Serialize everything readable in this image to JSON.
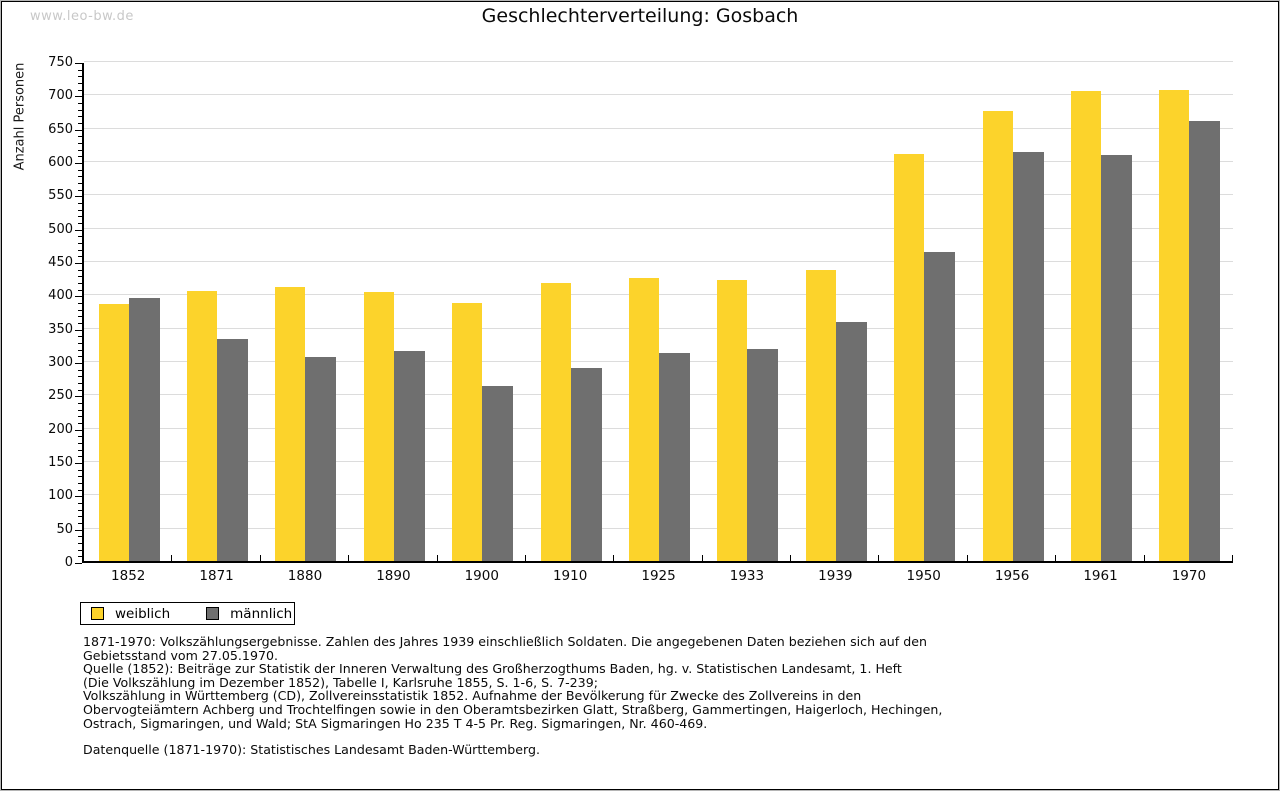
{
  "watermark": "www.leo-bw.de",
  "chart_data": {
    "type": "bar",
    "title": "Geschlechterverteilung: Gosbach",
    "ylabel": "Anzahl Personen",
    "xlabel": "",
    "categories": [
      "1852",
      "1871",
      "1880",
      "1890",
      "1900",
      "1910",
      "1925",
      "1933",
      "1939",
      "1950",
      "1956",
      "1961",
      "1970"
    ],
    "series": [
      {
        "name": "weiblich",
        "color": "#fcd32b",
        "values": [
          385,
          405,
          411,
          404,
          387,
          417,
          424,
          421,
          436,
          610,
          675,
          705,
          707
        ]
      },
      {
        "name": "männlich",
        "color": "#6f6f6f",
        "values": [
          394,
          333,
          306,
          315,
          263,
          290,
          312,
          318,
          359,
          464,
          613,
          609,
          660
        ]
      }
    ],
    "ylim": [
      0,
      750
    ],
    "ytick_major_step": 50,
    "ytick_minor_step": 10,
    "grid": "horizontal-major",
    "legend_position": "bottom-left",
    "gridline_color": "#dcdcdc"
  },
  "notes": {
    "block1_lines": [
      "1871-1970: Volkszählungsergebnisse. Zahlen des Jahres 1939 einschließlich Soldaten. Die angegebenen Daten beziehen sich auf den",
      "Gebietsstand vom 27.05.1970.",
      "Quelle (1852): Beiträge zur Statistik der Inneren Verwaltung des Großherzogthums Baden, hg. v. Statistischen Landesamt, 1. Heft",
      "(Die Volkszählung im Dezember 1852), Tabelle I, Karlsruhe 1855, S. 1-6, S. 7-239;",
      "Volkszählung in Württemberg (CD), Zollvereinsstatistik 1852. Aufnahme der Bevölkerung für Zwecke des Zollvereins in den",
      "Obervogteiämtern Achberg und Trochtelfingen sowie in den Oberamtsbezirken Glatt, Straßberg, Gammertingen, Haigerloch, Hechingen,",
      "Ostrach, Sigmaringen, und Wald; StA Sigmaringen Ho 235 T 4-5 Pr. Reg. Sigmaringen, Nr. 460-469."
    ],
    "block2": "Datenquelle (1871-1970): Statistisches Landesamt Baden-Württemberg."
  }
}
